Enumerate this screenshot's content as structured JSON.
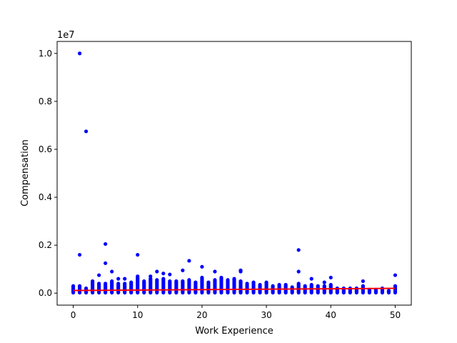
{
  "chart_data": {
    "type": "scatter",
    "xlabel": "Work Experience",
    "ylabel": "Compensation",
    "offset_text": "1e7",
    "xlim": [
      -2.5,
      52.5
    ],
    "ylim": [
      -500000,
      10500000
    ],
    "xticks": [
      0,
      10,
      20,
      30,
      40,
      50
    ],
    "yticks": [
      0,
      2000000,
      4000000,
      6000000,
      8000000,
      10000000
    ],
    "ytick_labels": [
      "0.0",
      "0.2",
      "0.4",
      "0.6",
      "0.8",
      "1.0"
    ],
    "grid": false,
    "colors": {
      "points": "#0000ff",
      "fit_line": "#ff0000"
    },
    "band_max": [
      300000,
      300000,
      200000,
      500000,
      400000,
      400000,
      500000,
      400000,
      400000,
      450000,
      700000,
      500000,
      600000,
      550000,
      600000,
      500000,
      500000,
      500000,
      550000,
      450000,
      650000,
      450000,
      550000,
      650000,
      550000,
      600000,
      500000,
      400000,
      450000,
      350000,
      450000,
      300000,
      350000,
      350000,
      250000,
      400000,
      300000,
      350000,
      300000,
      300000,
      350000,
      200000,
      200000,
      200000,
      200000,
      300000,
      150000,
      150000,
      200000,
      100000,
      300000
    ],
    "outliers": [
      [
        1,
        10000000
      ],
      [
        2,
        6750000
      ],
      [
        1,
        1600000
      ],
      [
        5,
        2050000
      ],
      [
        5,
        1250000
      ],
      [
        10,
        1600000
      ],
      [
        18,
        1350000
      ],
      [
        35,
        1800000
      ],
      [
        35,
        900000
      ],
      [
        20,
        1100000
      ],
      [
        22,
        900000
      ],
      [
        26,
        950000
      ],
      [
        26,
        900000
      ],
      [
        17,
        950000
      ],
      [
        13,
        900000
      ],
      [
        14,
        820000
      ],
      [
        15,
        780000
      ],
      [
        6,
        900000
      ],
      [
        4,
        750000
      ],
      [
        7,
        600000
      ],
      [
        8,
        600000
      ],
      [
        12,
        700000
      ],
      [
        40,
        650000
      ],
      [
        37,
        600000
      ],
      [
        50,
        750000
      ],
      [
        45,
        500000
      ],
      [
        39,
        450000
      ]
    ],
    "fit_line": {
      "x": [
        0,
        50
      ],
      "y": [
        110000,
        200000
      ]
    }
  }
}
